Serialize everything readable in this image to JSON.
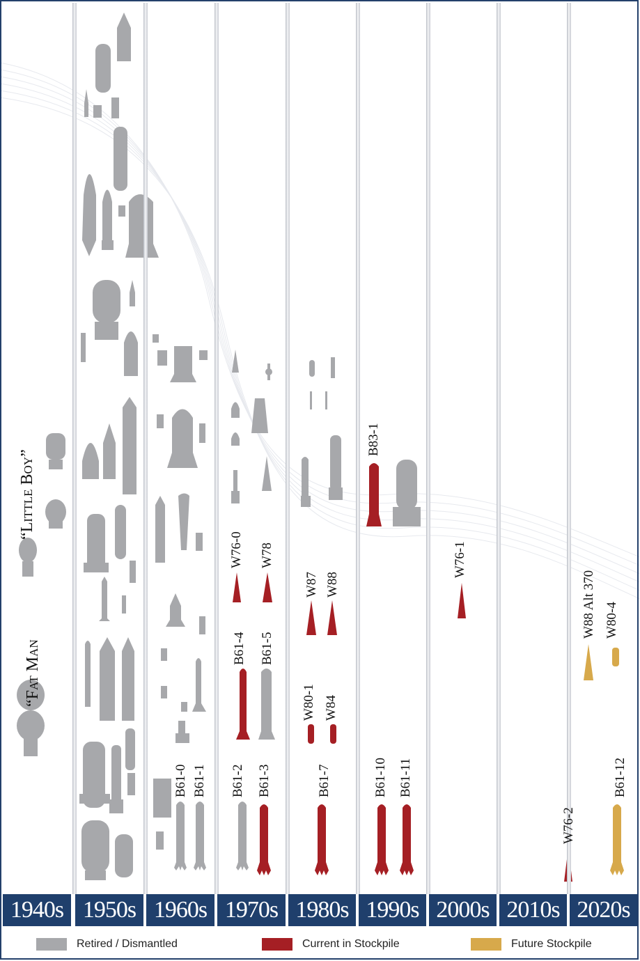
{
  "decades": [
    "1940s",
    "1950s",
    "1960s",
    "1970s",
    "1980s",
    "1990s",
    "2000s",
    "2010s",
    "2020s"
  ],
  "named_weapons": {
    "fat_man": "“Fat Man",
    "little_boy": "“Little Boy”"
  },
  "labels": {
    "b61_0": "B61-0",
    "b61_1": "B61-1",
    "b61_2": "B61-2",
    "b61_3": "B61-3",
    "b61_4": "B61-4",
    "b61_5": "B61-5",
    "w76_0": "W76-0",
    "w78": "W78",
    "b61_7": "B61-7",
    "w80_1": "W80-1",
    "w84": "W84",
    "w87": "W87",
    "w88": "W88",
    "b83_1": "B83-1",
    "b61_10": "B61-10",
    "b61_11": "B61-11",
    "w76_1": "W76-1",
    "w76_2": "W76-2",
    "w88_alt": "W88 Alt 370",
    "w80_4": "W80-4",
    "b61_12": "B61-12"
  },
  "legend": [
    {
      "label": "Retired / Dismantled",
      "color": "#a7a8ab"
    },
    {
      "label": "Current in Stockpile",
      "color": "#a51f24"
    },
    {
      "label": "Future Stockpile",
      "color": "#d7a94b"
    }
  ],
  "colors": {
    "retired": "#a7a8ab",
    "current": "#a51f24",
    "future": "#d7a94b",
    "band": "#1f3f6c"
  }
}
